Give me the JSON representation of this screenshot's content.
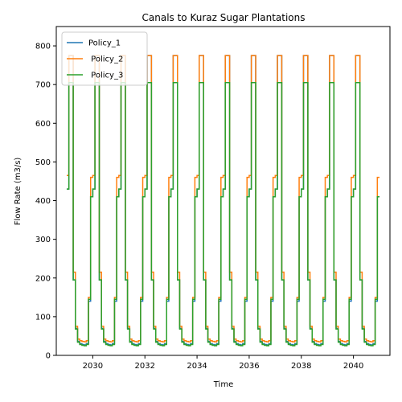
{
  "chart_data": {
    "type": "line",
    "title": "Canals to Kuraz Sugar Plantations",
    "xlabel": "Time",
    "ylabel": "Flow Rate (m3/s)",
    "xlim": [
      2028.6,
      2041.4
    ],
    "ylim": [
      0,
      850
    ],
    "xticks": [
      2030,
      2032,
      2034,
      2036,
      2038,
      2040
    ],
    "yticks": [
      0,
      100,
      200,
      300,
      400,
      500,
      600,
      700,
      800
    ],
    "grid": false,
    "legend": {
      "placement": "top-left"
    },
    "annual_step_profile": {
      "description_months": [
        1,
        2,
        3,
        4,
        5,
        6,
        7,
        8,
        9,
        10,
        11,
        12
      ],
      "series": [
        {
          "name": "Policy_1",
          "color": "#1f77b4",
          "monthly_values": [
            430,
            775,
            775,
            195,
            70,
            36,
            30,
            28,
            27,
            30,
            140,
            410
          ]
        },
        {
          "name": " Policy_2",
          "color": "#ff7f0e",
          "monthly_values": [
            465,
            775,
            775,
            215,
            75,
            42,
            38,
            36,
            35,
            38,
            150,
            460
          ]
        },
        {
          "name": " Policy_3",
          "color": "#2ca02c",
          "monthly_values": [
            430,
            705,
            705,
            195,
            68,
            34,
            28,
            26,
            25,
            28,
            145,
            410
          ]
        }
      ]
    },
    "start_year": 2029,
    "end_year": 2041
  }
}
